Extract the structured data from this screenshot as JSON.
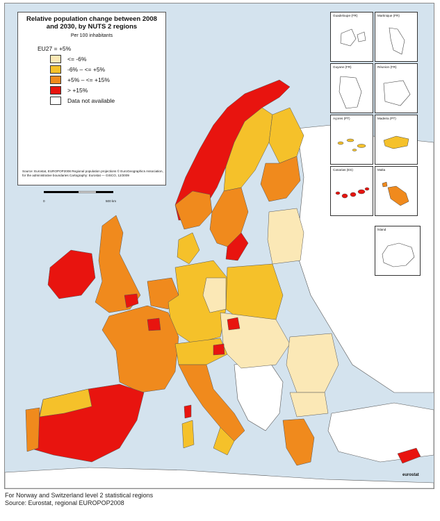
{
  "legend": {
    "title": "Relative population change between 2008 and 2030, by NUTS 2 regions",
    "subtitle": "Per 100 inhabitants",
    "eu27": "EU27 = +5%",
    "classes": [
      {
        "label": "<= -6%",
        "color": "#fbe8b6"
      },
      {
        "label": "-6% – <= +5%",
        "color": "#f5c12a"
      },
      {
        "label": "+5% – <= +15%",
        "color": "#f08a1d"
      },
      {
        "label": "> +15%",
        "color": "#e8140f"
      },
      {
        "label": "Data not available",
        "color": "#ffffff"
      }
    ],
    "source": "Source: Eurostat, EUROPOP2008 Regional population projections © EuroGeographics Association, for the administrative boundaries Cartography: Eurostat — GISCO, 12/2009"
  },
  "scale": {
    "zero": "0",
    "max": "500 km"
  },
  "insets": [
    {
      "name": "Guadeloupe (FR)",
      "fill": "#ffffff"
    },
    {
      "name": "Martinique (FR)",
      "fill": "#ffffff"
    },
    {
      "name": "Guyane (FR)",
      "fill": "#ffffff"
    },
    {
      "name": "Réunion (FR)",
      "fill": "#ffffff"
    },
    {
      "name": "Açores (PT)",
      "fill": "#f5c12a"
    },
    {
      "name": "Madeira (PT)",
      "fill": "#f5c12a"
    },
    {
      "name": "Canarias (ES)",
      "fill": "#e8140f"
    },
    {
      "name": "Malta",
      "fill": "#f08a1d"
    },
    {
      "name": "Ísland",
      "fill": "#ffffff"
    }
  ],
  "logo": "eurostat",
  "footer": {
    "line1": "For Norway and Switzerland level 2 statistical regions",
    "line2": "Source: Eurostat, regional EUROPOP2008"
  }
}
